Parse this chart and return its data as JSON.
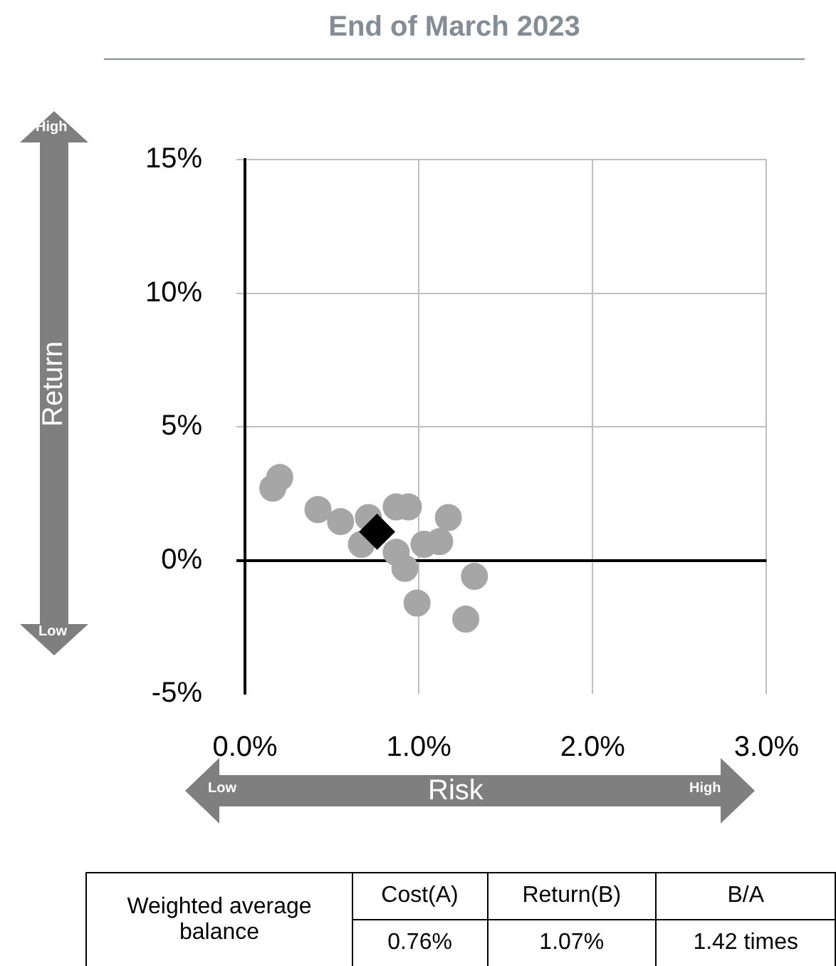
{
  "chart_data": {
    "type": "scatter",
    "title": "End of March 2023",
    "xlabel": "Risk",
    "ylabel": "Return",
    "xlim": [
      0,
      3
    ],
    "xticks": [
      {
        "value": 0,
        "label": "0.0%"
      },
      {
        "value": 1,
        "label": "1.0%"
      },
      {
        "value": 2,
        "label": "2.0%"
      },
      {
        "value": 3,
        "label": "3.0%"
      }
    ],
    "ylim": [
      -5,
      15
    ],
    "yticks": [
      {
        "value": -5,
        "label": "-5%"
      },
      {
        "value": 0,
        "label": "0%"
      },
      {
        "value": 5,
        "label": "5%"
      },
      {
        "value": 10,
        "label": "10%"
      },
      {
        "value": 15,
        "label": "15%"
      }
    ],
    "grid": true,
    "legend": false,
    "series": [
      {
        "color": "#a6a6a6",
        "marker": "circle",
        "x": [
          0.16,
          0.2,
          0.42,
          0.55,
          0.67,
          0.71,
          0.79,
          0.87,
          0.94,
          0.87,
          0.92,
          0.99,
          1.03,
          1.12,
          1.17,
          1.32,
          1.27
        ],
        "values": [
          2.7,
          3.1,
          1.9,
          1.45,
          0.6,
          1.6,
          null,
          2.0,
          2.0,
          0.3,
          -0.3,
          -1.6,
          0.6,
          0.7,
          1.6,
          -0.6,
          -2.2
        ]
      },
      {
        "color": "#000000",
        "marker": "diamond",
        "x": [
          0.76
        ],
        "values": [
          1.07
        ]
      }
    ],
    "annotations": [
      "High",
      "Low",
      "Low",
      "High",
      "Weighted average balance",
      "Cost(A)",
      "Return(B)",
      "B/A",
      "0.76%",
      "1.07%",
      "1.42 times"
    ]
  }
}
